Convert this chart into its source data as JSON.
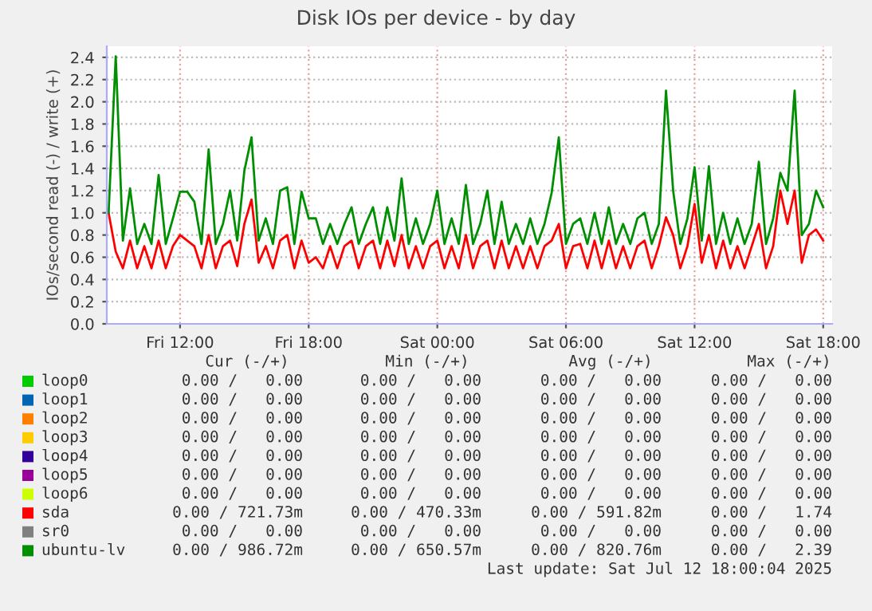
{
  "chart_data": {
    "type": "line",
    "title": "Disk IOs per device - by day",
    "ylabel": "IOs/second read (-) / write (+)",
    "x": [
      "2025-07-11T08:40",
      "2025-07-11T09:00",
      "2025-07-11T09:20",
      "2025-07-11T09:40",
      "2025-07-11T10:00",
      "2025-07-11T10:20",
      "2025-07-11T10:40",
      "2025-07-11T11:00",
      "2025-07-11T11:20",
      "2025-07-11T11:40",
      "2025-07-11T12:00",
      "2025-07-11T12:20",
      "2025-07-11T12:40",
      "2025-07-11T13:00",
      "2025-07-11T13:20",
      "2025-07-11T13:40",
      "2025-07-11T14:00",
      "2025-07-11T14:20",
      "2025-07-11T14:40",
      "2025-07-11T15:00",
      "2025-07-11T15:20",
      "2025-07-11T15:40",
      "2025-07-11T16:00",
      "2025-07-11T16:20",
      "2025-07-11T16:40",
      "2025-07-11T17:00",
      "2025-07-11T17:20",
      "2025-07-11T17:40",
      "2025-07-11T18:00",
      "2025-07-11T18:20",
      "2025-07-11T18:40",
      "2025-07-11T19:00",
      "2025-07-11T19:20",
      "2025-07-11T19:40",
      "2025-07-11T20:00",
      "2025-07-11T20:20",
      "2025-07-11T20:40",
      "2025-07-11T21:00",
      "2025-07-11T21:20",
      "2025-07-11T21:40",
      "2025-07-11T22:00",
      "2025-07-11T22:20",
      "2025-07-11T22:40",
      "2025-07-11T23:00",
      "2025-07-11T23:20",
      "2025-07-11T23:40",
      "2025-07-12T00:00",
      "2025-07-12T00:20",
      "2025-07-12T00:40",
      "2025-07-12T01:00",
      "2025-07-12T01:20",
      "2025-07-12T01:40",
      "2025-07-12T02:00",
      "2025-07-12T02:20",
      "2025-07-12T02:40",
      "2025-07-12T03:00",
      "2025-07-12T03:20",
      "2025-07-12T03:40",
      "2025-07-12T04:00",
      "2025-07-12T04:20",
      "2025-07-12T04:40",
      "2025-07-12T05:00",
      "2025-07-12T05:20",
      "2025-07-12T05:40",
      "2025-07-12T06:00",
      "2025-07-12T06:20",
      "2025-07-12T06:40",
      "2025-07-12T07:00",
      "2025-07-12T07:20",
      "2025-07-12T07:40",
      "2025-07-12T08:00",
      "2025-07-12T08:20",
      "2025-07-12T08:40",
      "2025-07-12T09:00",
      "2025-07-12T09:20",
      "2025-07-12T09:40",
      "2025-07-12T10:00",
      "2025-07-12T10:20",
      "2025-07-12T10:40",
      "2025-07-12T11:00",
      "2025-07-12T11:20",
      "2025-07-12T11:40",
      "2025-07-12T12:00",
      "2025-07-12T12:20",
      "2025-07-12T12:40",
      "2025-07-12T13:00",
      "2025-07-12T13:20",
      "2025-07-12T13:40",
      "2025-07-12T14:00",
      "2025-07-12T14:20",
      "2025-07-12T14:40",
      "2025-07-12T15:00",
      "2025-07-12T15:20",
      "2025-07-12T15:40",
      "2025-07-12T16:00",
      "2025-07-12T16:20",
      "2025-07-12T16:40",
      "2025-07-12T17:00",
      "2025-07-12T17:20",
      "2025-07-12T17:40",
      "2025-07-12T18:00"
    ],
    "series": [
      {
        "name": "loop0",
        "color": "#00cc00",
        "values": [
          null,
          null,
          null,
          null,
          null,
          null,
          null,
          null,
          null,
          null,
          null,
          null,
          null,
          null,
          null,
          null,
          null,
          null,
          null,
          null,
          null,
          null,
          null,
          null,
          null,
          null,
          null,
          null,
          null,
          null,
          null,
          null,
          null,
          null,
          null,
          null,
          null,
          null,
          null,
          null,
          null,
          null,
          null,
          null,
          null,
          null,
          null,
          null,
          null,
          null,
          null,
          null,
          null,
          null,
          null,
          null,
          null,
          null,
          null,
          null,
          null,
          null,
          null,
          null,
          null,
          null,
          null,
          null,
          null,
          null,
          null,
          null,
          null,
          null,
          null,
          null,
          null,
          null,
          null,
          null,
          null,
          null,
          null,
          null,
          null,
          null,
          null,
          null,
          null,
          null,
          null,
          null,
          null,
          null,
          null,
          null,
          null,
          null,
          null,
          null,
          null
        ]
      },
      {
        "name": "loop1",
        "color": "#0066b3",
        "values": [
          null,
          null,
          null,
          null,
          null,
          null,
          null,
          null,
          null,
          null,
          null,
          null,
          null,
          null,
          null,
          null,
          null,
          null,
          null,
          null,
          null,
          null,
          null,
          null,
          null,
          null,
          null,
          null,
          null,
          null,
          null,
          null,
          null,
          null,
          null,
          null,
          null,
          null,
          null,
          null,
          null,
          null,
          null,
          null,
          null,
          null,
          null,
          null,
          null,
          null,
          null,
          null,
          null,
          null,
          null,
          null,
          null,
          null,
          null,
          null,
          null,
          null,
          null,
          null,
          null,
          null,
          null,
          null,
          null,
          null,
          null,
          null,
          null,
          null,
          null,
          null,
          null,
          null,
          null,
          null,
          null,
          null,
          null,
          null,
          null,
          null,
          null,
          null,
          null,
          null,
          null,
          null,
          null,
          null,
          null,
          null,
          null,
          null,
          null,
          null,
          null
        ]
      },
      {
        "name": "loop2",
        "color": "#ff8000",
        "values": [
          null,
          null,
          null,
          null,
          null,
          null,
          null,
          null,
          null,
          null,
          null,
          null,
          null,
          null,
          null,
          null,
          null,
          null,
          null,
          null,
          null,
          null,
          null,
          null,
          null,
          null,
          null,
          null,
          null,
          null,
          null,
          null,
          null,
          null,
          null,
          null,
          null,
          null,
          null,
          null,
          null,
          null,
          null,
          null,
          null,
          null,
          null,
          null,
          null,
          null,
          null,
          null,
          null,
          null,
          null,
          null,
          null,
          null,
          null,
          null,
          null,
          null,
          null,
          null,
          null,
          null,
          null,
          null,
          null,
          null,
          null,
          null,
          null,
          null,
          null,
          null,
          null,
          null,
          null,
          null,
          null,
          null,
          null,
          null,
          null,
          null,
          null,
          null,
          null,
          null,
          null,
          null,
          null,
          null,
          null,
          null,
          null,
          null,
          null,
          null,
          null
        ]
      },
      {
        "name": "loop3",
        "color": "#ffcc00",
        "values": [
          null,
          null,
          null,
          null,
          null,
          null,
          null,
          null,
          null,
          null,
          null,
          null,
          null,
          null,
          null,
          null,
          null,
          null,
          null,
          null,
          null,
          null,
          null,
          null,
          null,
          null,
          null,
          null,
          null,
          null,
          null,
          null,
          null,
          null,
          null,
          null,
          null,
          null,
          null,
          null,
          null,
          null,
          null,
          null,
          null,
          null,
          null,
          null,
          null,
          null,
          null,
          null,
          null,
          null,
          null,
          null,
          null,
          null,
          null,
          null,
          null,
          null,
          null,
          null,
          null,
          null,
          null,
          null,
          null,
          null,
          null,
          null,
          null,
          null,
          null,
          null,
          null,
          null,
          null,
          null,
          null,
          null,
          null,
          null,
          null,
          null,
          null,
          null,
          null,
          null,
          null,
          null,
          null,
          null,
          null,
          null,
          null,
          null,
          null,
          null,
          null
        ]
      },
      {
        "name": "loop4",
        "color": "#330099",
        "values": [
          null,
          null,
          null,
          null,
          null,
          null,
          null,
          null,
          null,
          null,
          null,
          null,
          null,
          null,
          null,
          null,
          null,
          null,
          null,
          null,
          null,
          null,
          null,
          null,
          null,
          null,
          null,
          null,
          null,
          null,
          null,
          null,
          null,
          null,
          null,
          null,
          null,
          null,
          null,
          null,
          null,
          null,
          null,
          null,
          null,
          null,
          null,
          null,
          null,
          null,
          null,
          null,
          null,
          null,
          null,
          null,
          null,
          null,
          null,
          null,
          null,
          null,
          null,
          null,
          null,
          null,
          null,
          null,
          null,
          null,
          null,
          null,
          null,
          null,
          null,
          null,
          null,
          null,
          null,
          null,
          null,
          null,
          null,
          null,
          null,
          null,
          null,
          null,
          null,
          null,
          null,
          null,
          null,
          null,
          null,
          null,
          null,
          null,
          null,
          null,
          null
        ]
      },
      {
        "name": "loop5",
        "color": "#990099",
        "values": [
          null,
          null,
          null,
          null,
          null,
          null,
          null,
          null,
          null,
          null,
          null,
          null,
          null,
          null,
          null,
          null,
          null,
          null,
          null,
          null,
          null,
          null,
          null,
          null,
          null,
          null,
          null,
          null,
          null,
          null,
          null,
          null,
          null,
          null,
          null,
          null,
          null,
          null,
          null,
          null,
          null,
          null,
          null,
          null,
          null,
          null,
          null,
          null,
          null,
          null,
          null,
          null,
          null,
          null,
          null,
          null,
          null,
          null,
          null,
          null,
          null,
          null,
          null,
          null,
          null,
          null,
          null,
          null,
          null,
          null,
          null,
          null,
          null,
          null,
          null,
          null,
          null,
          null,
          null,
          null,
          null,
          null,
          null,
          null,
          null,
          null,
          null,
          null,
          null,
          null,
          null,
          null,
          null,
          null,
          null,
          null,
          null,
          null,
          null,
          null,
          null
        ]
      },
      {
        "name": "loop6",
        "color": "#ccff00",
        "values": [
          null,
          null,
          null,
          null,
          null,
          null,
          null,
          null,
          null,
          null,
          null,
          null,
          null,
          null,
          null,
          null,
          null,
          null,
          null,
          null,
          null,
          null,
          null,
          null,
          null,
          null,
          null,
          null,
          null,
          null,
          null,
          null,
          null,
          null,
          null,
          null,
          null,
          null,
          null,
          null,
          null,
          null,
          null,
          null,
          null,
          null,
          null,
          null,
          null,
          null,
          null,
          null,
          null,
          null,
          null,
          null,
          null,
          null,
          null,
          null,
          null,
          null,
          null,
          null,
          null,
          null,
          null,
          null,
          null,
          null,
          null,
          null,
          null,
          null,
          null,
          null,
          null,
          null,
          null,
          null,
          null,
          null,
          null,
          null,
          null,
          null,
          null,
          null,
          null,
          null,
          null,
          null,
          null,
          null,
          null,
          null,
          null,
          null,
          null,
          null,
          null
        ]
      },
      {
        "name": "sda",
        "color": "#ff0000",
        "values": [
          1.0,
          0.65,
          0.5,
          0.75,
          0.5,
          0.7,
          0.5,
          0.75,
          0.5,
          0.7,
          0.8,
          0.75,
          0.7,
          0.5,
          0.8,
          0.5,
          0.7,
          0.75,
          0.52,
          0.9,
          1.12,
          0.55,
          0.7,
          0.5,
          0.75,
          0.8,
          0.5,
          0.75,
          0.55,
          0.6,
          0.5,
          0.7,
          0.5,
          0.7,
          0.75,
          0.5,
          0.7,
          0.75,
          0.5,
          0.75,
          0.52,
          0.8,
          0.5,
          0.7,
          0.5,
          0.7,
          0.75,
          0.5,
          0.7,
          0.5,
          0.8,
          0.5,
          0.7,
          0.75,
          0.5,
          0.75,
          0.5,
          0.7,
          0.5,
          0.7,
          0.5,
          0.7,
          0.75,
          0.9,
          0.5,
          0.7,
          0.72,
          0.5,
          0.75,
          0.5,
          0.75,
          0.5,
          0.7,
          0.5,
          0.7,
          0.75,
          0.5,
          0.7,
          0.96,
          0.8,
          0.5,
          0.7,
          1.08,
          0.55,
          0.8,
          0.5,
          0.75,
          0.5,
          0.7,
          0.5,
          0.7,
          0.9,
          0.5,
          0.7,
          1.2,
          0.9,
          1.2,
          0.55,
          0.8,
          0.85,
          0.75
        ]
      },
      {
        "name": "sr0",
        "color": "#808080",
        "values": [
          null,
          null,
          null,
          null,
          null,
          null,
          null,
          null,
          null,
          null,
          null,
          null,
          null,
          null,
          null,
          null,
          null,
          null,
          null,
          null,
          null,
          null,
          null,
          null,
          null,
          null,
          null,
          null,
          null,
          null,
          null,
          null,
          null,
          null,
          null,
          null,
          null,
          null,
          null,
          null,
          null,
          null,
          null,
          null,
          null,
          null,
          null,
          null,
          null,
          null,
          null,
          null,
          null,
          null,
          null,
          null,
          null,
          null,
          null,
          null,
          null,
          null,
          null,
          null,
          null,
          null,
          null,
          null,
          null,
          null,
          null,
          null,
          null,
          null,
          null,
          null,
          null,
          null,
          null,
          null,
          null,
          null,
          null,
          null,
          null,
          null,
          null,
          null,
          null,
          null,
          null,
          null,
          null,
          null,
          null,
          null,
          null,
          null,
          null,
          null,
          null
        ]
      },
      {
        "name": "ubuntu-lv",
        "color": "#008f00",
        "values": [
          1.0,
          2.41,
          0.75,
          1.22,
          0.72,
          0.9,
          0.72,
          1.34,
          0.72,
          0.95,
          1.19,
          1.19,
          1.1,
          0.72,
          1.57,
          0.72,
          0.9,
          1.2,
          0.75,
          1.38,
          1.68,
          0.75,
          0.95,
          0.72,
          1.2,
          1.23,
          0.72,
          1.19,
          0.95,
          0.95,
          0.72,
          0.9,
          0.72,
          0.9,
          1.05,
          0.72,
          0.9,
          1.05,
          0.72,
          1.05,
          0.75,
          1.31,
          0.72,
          0.95,
          0.72,
          0.9,
          1.2,
          0.72,
          0.95,
          0.72,
          1.25,
          0.72,
          0.9,
          1.2,
          0.72,
          1.1,
          0.72,
          0.9,
          0.72,
          0.95,
          0.72,
          0.9,
          1.18,
          1.68,
          0.72,
          0.9,
          0.95,
          0.72,
          1.0,
          0.72,
          1.05,
          0.72,
          0.9,
          0.72,
          0.95,
          1.0,
          0.72,
          0.9,
          2.1,
          1.2,
          0.72,
          0.95,
          1.41,
          0.75,
          1.42,
          0.72,
          1.0,
          0.72,
          0.95,
          0.72,
          0.9,
          1.46,
          0.72,
          0.95,
          1.36,
          1.2,
          2.1,
          0.8,
          0.9,
          1.2,
          1.05
        ]
      }
    ],
    "xlim": [
      "2025-07-11T08:35",
      "2025-07-12T18:25"
    ],
    "xticks": [
      {
        "value": "2025-07-11T12:00",
        "label": "Fri 12:00"
      },
      {
        "value": "2025-07-11T18:00",
        "label": "Fri 18:00"
      },
      {
        "value": "2025-07-12T00:00",
        "label": "Sat 00:00"
      },
      {
        "value": "2025-07-12T06:00",
        "label": "Sat 06:00"
      },
      {
        "value": "2025-07-12T12:00",
        "label": "Sat 12:00"
      },
      {
        "value": "2025-07-12T18:00",
        "label": "Sat 18:00"
      }
    ],
    "ylim": [
      0,
      2.5
    ],
    "yticks": [
      {
        "value": 0,
        "label": "0.0"
      },
      0.2,
      0.4,
      0.6,
      0.8,
      {
        "value": 1,
        "label": "1.0"
      },
      1.2,
      1.4,
      1.6,
      1.8,
      {
        "value": 2,
        "label": "2.0"
      },
      2.2,
      2.4
    ],
    "grid": true,
    "legend": "bottom",
    "marker": "none",
    "line_style": "solid",
    "annotations": [
      "Cur (-/+)",
      "Min (-/+)",
      "Avg (-/+)",
      "Max (-/+)",
      "0.00 /   0.00",
      "0.00 /   0.00",
      "0.00 /   0.00",
      "0.00 /   0.00",
      "0.00 /   0.00",
      "0.00 /   0.00",
      "0.00 /   0.00",
      "0.00 /   0.00",
      "0.00 /   0.00",
      "0.00 /   0.00",
      "0.00 /   0.00",
      "0.00 /   0.00",
      "0.00 /   0.00",
      "0.00 /   0.00",
      "0.00 /   0.00",
      "0.00 /   0.00",
      "0.00 /   0.00",
      "0.00 /   0.00",
      "0.00 /   0.00",
      "0.00 /   0.00",
      "0.00 /   0.00",
      "0.00 /   0.00",
      "0.00 /   0.00",
      "0.00 /   0.00",
      "0.00 /   0.00",
      "0.00 /   0.00",
      "0.00 /   0.00",
      "0.00 /   0.00",
      "0.00 / 721.73m",
      "0.00 / 470.33m",
      "0.00 / 591.82m",
      "0.00 /   1.74",
      "0.00 /   0.00",
      "0.00 /   0.00",
      "0.00 /   0.00",
      "0.00 /   0.00",
      "0.00 / 986.72m",
      "0.00 / 650.57m",
      "0.00 / 820.76m",
      "0.00 /   2.39",
      "Last update: Sat Jul 12 18:00:04 2025"
    ]
  }
}
